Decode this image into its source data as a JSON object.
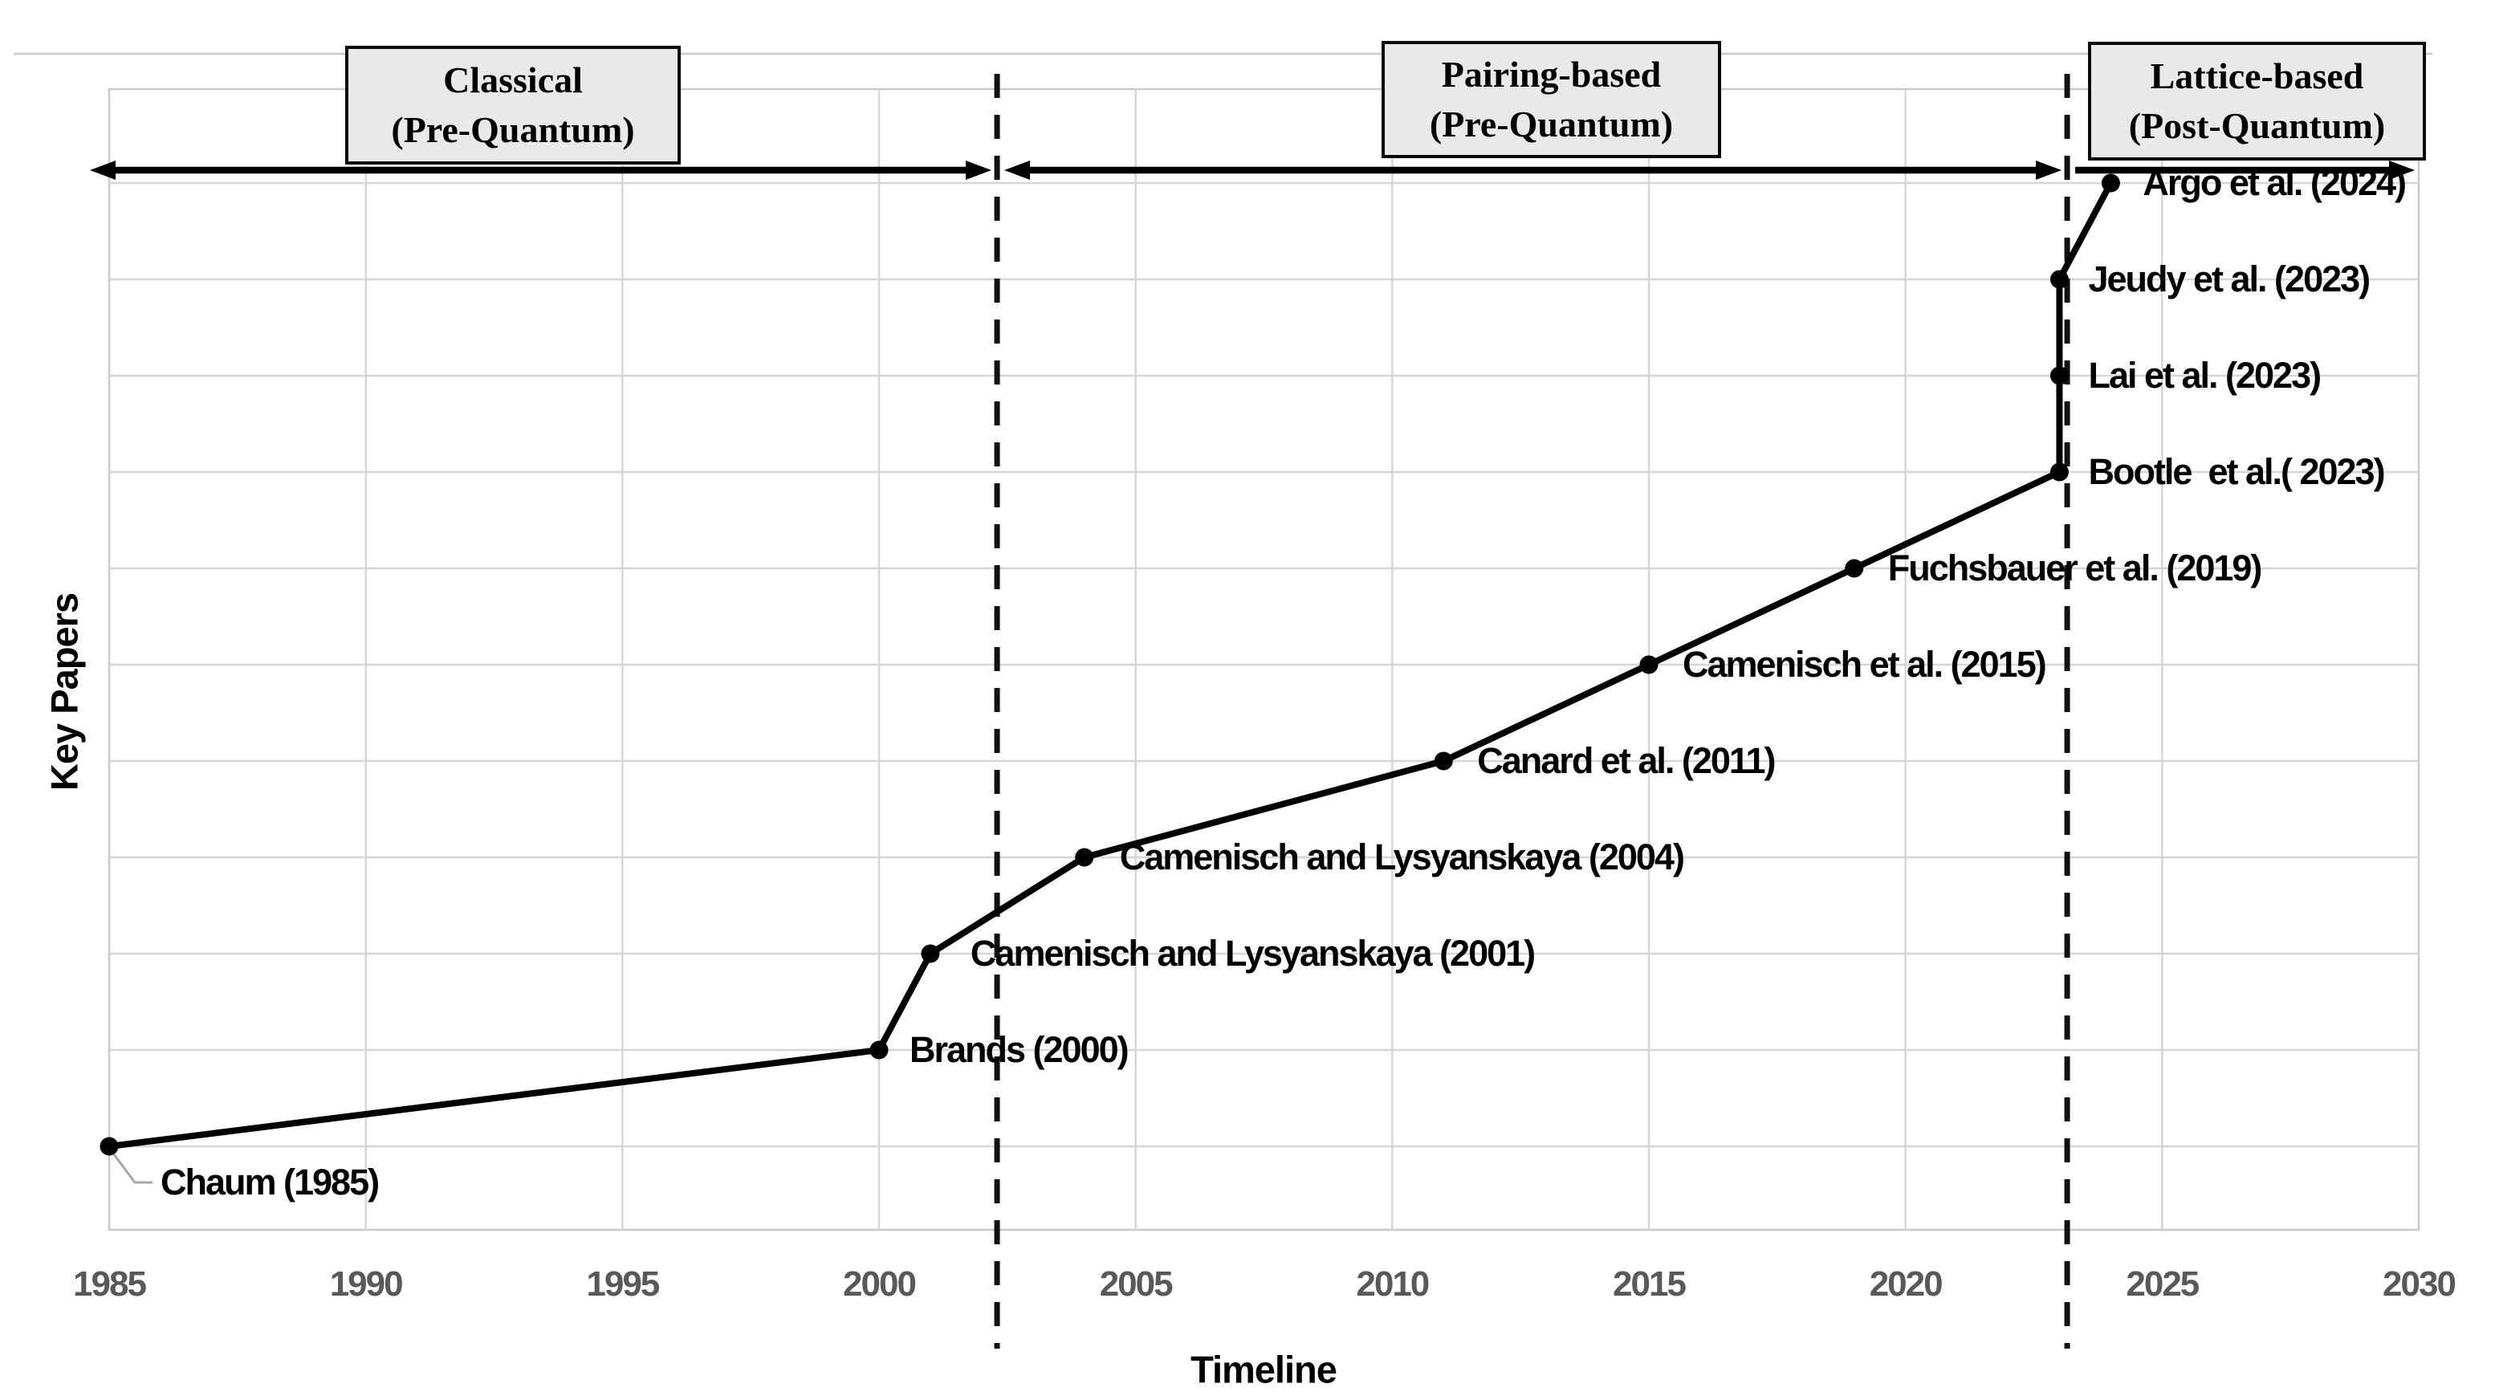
{
  "chart_data": {
    "type": "line",
    "xlabel": "Timeline",
    "ylabel": "Key Papers",
    "xlim": [
      1985,
      2030
    ],
    "x_tick_years": [
      1985,
      1990,
      1995,
      2000,
      2005,
      2010,
      2015,
      2020,
      2025,
      2030
    ],
    "x_tick_labels": [
      "1985",
      "1990",
      "1995",
      "2000",
      "2005",
      "2010",
      "2015",
      "2020",
      "2025",
      "2030"
    ],
    "grid": true,
    "legend": "none",
    "series": [
      {
        "name": "key-papers",
        "points": [
          {
            "label": "Chaum (1985)",
            "year": 1985,
            "order": 1,
            "callout": true
          },
          {
            "label": "Brands (2000)",
            "year": 2000,
            "order": 2
          },
          {
            "label": "Camenisch and Lysyanskaya (2001)",
            "year": 2001,
            "order": 3
          },
          {
            "label": "Camenisch and Lysyanskaya (2004)",
            "year": 2004,
            "order": 4
          },
          {
            "label": "Canard et al. (2011)",
            "year": 2011,
            "order": 5
          },
          {
            "label": "Camenisch et al. (2015)",
            "year": 2015,
            "order": 6
          },
          {
            "label": "Fuchsbauer et al. (2019)",
            "year": 2019,
            "order": 7
          },
          {
            "label": "Bootle  et al.( 2023)",
            "year": 2023,
            "order": 8
          },
          {
            "label": "Lai et al. (2023)",
            "year": 2023,
            "order": 9
          },
          {
            "label": "Jeudy et al. (2023)",
            "year": 2023,
            "order": 10
          },
          {
            "label": "Argo et al. (2024)",
            "year": 2024,
            "order": 11
          }
        ]
      }
    ],
    "era_dividers": [
      {
        "year": 2002.3,
        "style": "dashed"
      },
      {
        "year": 2023.15,
        "style": "dashed"
      }
    ],
    "eras": [
      {
        "title": "Classical",
        "subtitle": "(Pre-Quantum)",
        "from": "axis-start",
        "to": "divider-1",
        "arrow_heads": "both"
      },
      {
        "title": "Pairing-based",
        "subtitle": "(Pre-Quantum)",
        "from": "divider-1",
        "to": "divider-2",
        "arrow_heads": "both"
      },
      {
        "title": "Lattice-based",
        "subtitle": "(Post-Quantum)",
        "from": "divider-2",
        "to": "axis-end",
        "arrow_heads": "right"
      }
    ],
    "colors": {
      "series_line": "#000000",
      "marker": "#000000",
      "grid_line": "#d6d6d6",
      "plot_border": "#c9c9c9",
      "tick_label": "#595959",
      "axis_title": "#000000",
      "data_label": "#000000",
      "era_box_fill": "#e9e9e9",
      "era_box_border": "#0a0a0a",
      "era_text": "#000000",
      "divider": "#111111",
      "arrow": "#000000",
      "callout_leader": "#a6a6a6",
      "background": "#ffffff"
    }
  }
}
